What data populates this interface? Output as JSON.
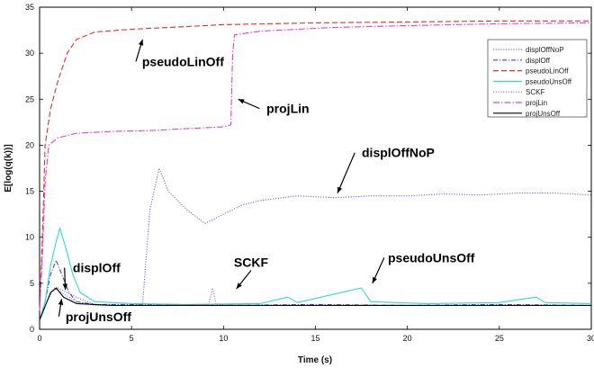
{
  "chart_data": {
    "type": "line",
    "xlabel": "Time (s)",
    "ylabel": "E[log(q(k))]",
    "xlim": [
      0,
      30
    ],
    "ylim": [
      0,
      35
    ],
    "x_ticks": [
      "0",
      "5",
      "10",
      "15",
      "20",
      "25",
      "30"
    ],
    "y_ticks": [
      "0",
      "5",
      "10",
      "15",
      "20",
      "25",
      "30",
      "35"
    ],
    "legend_position": "top-right",
    "series": [
      {
        "name": "displOffNoP",
        "color": "#6b6bd6",
        "dash": "1.2,1.6",
        "points": [
          [
            0,
            1
          ],
          [
            0.3,
            2.5
          ],
          [
            0.6,
            4
          ],
          [
            1,
            4.5
          ],
          [
            2,
            3.5
          ],
          [
            3,
            2.7
          ],
          [
            4,
            2.6
          ],
          [
            5,
            2.6
          ],
          [
            5.6,
            2.7
          ],
          [
            6,
            13
          ],
          [
            6.5,
            17.5
          ],
          [
            7,
            15
          ],
          [
            8,
            13
          ],
          [
            9,
            11.5
          ],
          [
            10,
            12.5
          ],
          [
            11,
            13.5
          ],
          [
            12,
            14
          ],
          [
            14,
            14.5
          ],
          [
            16,
            14.3
          ],
          [
            18,
            14.5
          ],
          [
            20,
            14.5
          ],
          [
            22,
            14.7
          ],
          [
            24,
            14.6
          ],
          [
            26,
            14.8
          ],
          [
            28,
            14.8
          ],
          [
            30,
            14.6
          ]
        ]
      },
      {
        "name": "displOff",
        "color": "#5b3fc4",
        "dash": "5,2,1,2",
        "points": [
          [
            0,
            1
          ],
          [
            0.3,
            3
          ],
          [
            0.6,
            6
          ],
          [
            0.9,
            7.5
          ],
          [
            1.2,
            6
          ],
          [
            1.6,
            4
          ],
          [
            2,
            3
          ],
          [
            3,
            2.7
          ],
          [
            5,
            2.7
          ],
          [
            10,
            2.6
          ],
          [
            15,
            2.7
          ],
          [
            20,
            2.6
          ],
          [
            25,
            2.7
          ],
          [
            30,
            2.6
          ]
        ]
      },
      {
        "name": "pseudoLinOff",
        "color": "#e03020",
        "dash": "6,3",
        "points": [
          [
            0,
            2
          ],
          [
            0.15,
            10
          ],
          [
            0.3,
            20
          ],
          [
            0.6,
            24
          ],
          [
            1,
            27
          ],
          [
            1.5,
            30
          ],
          [
            2,
            31.5
          ],
          [
            3,
            32.3
          ],
          [
            5,
            32.6
          ],
          [
            8,
            32.9
          ],
          [
            10,
            33.1
          ],
          [
            15,
            33.3
          ],
          [
            20,
            33.4
          ],
          [
            25,
            33.5
          ],
          [
            30,
            33.5
          ]
        ]
      },
      {
        "name": "pseudoUnsOff",
        "color": "#30d8d8",
        "dash": "",
        "points": [
          [
            0,
            1
          ],
          [
            0.3,
            3
          ],
          [
            0.6,
            7
          ],
          [
            0.9,
            9.5
          ],
          [
            1.1,
            11
          ],
          [
            1.4,
            9
          ],
          [
            1.8,
            6
          ],
          [
            2.2,
            4
          ],
          [
            3,
            3
          ],
          [
            5,
            2.8
          ],
          [
            8,
            2.7
          ],
          [
            12,
            2.8
          ],
          [
            13.5,
            3.5
          ],
          [
            14,
            2.9
          ],
          [
            17.5,
            4.5
          ],
          [
            18,
            3
          ],
          [
            21,
            2.8
          ],
          [
            25,
            2.9
          ],
          [
            27,
            3.5
          ],
          [
            27.5,
            2.9
          ],
          [
            30,
            2.8
          ]
        ]
      },
      {
        "name": "SCKF",
        "color": "#a070d0",
        "dash": "1.2,1.6",
        "points": [
          [
            0,
            1
          ],
          [
            0.4,
            3
          ],
          [
            0.8,
            4.5
          ],
          [
            1.2,
            4
          ],
          [
            2,
            3
          ],
          [
            3,
            2.6
          ],
          [
            6,
            2.6
          ],
          [
            9.2,
            2.7
          ],
          [
            9.4,
            4.5
          ],
          [
            9.6,
            2.7
          ],
          [
            12,
            2.6
          ],
          [
            16,
            2.6
          ],
          [
            20,
            2.6
          ],
          [
            24,
            2.6
          ],
          [
            30,
            2.6
          ]
        ]
      },
      {
        "name": "projLin",
        "color": "#e040e0",
        "dash": "7,2,1.5,2",
        "points": [
          [
            0,
            2
          ],
          [
            0.15,
            8
          ],
          [
            0.3,
            16
          ],
          [
            0.5,
            20
          ],
          [
            1,
            20.8
          ],
          [
            2,
            21.3
          ],
          [
            4,
            21.5
          ],
          [
            6,
            21.6
          ],
          [
            8,
            21.8
          ],
          [
            10,
            22
          ],
          [
            10.4,
            22.2
          ],
          [
            10.5,
            30
          ],
          [
            10.6,
            32
          ],
          [
            12,
            32.4
          ],
          [
            16,
            32.8
          ],
          [
            20,
            33
          ],
          [
            25,
            33.2
          ],
          [
            30,
            33.3
          ]
        ]
      },
      {
        "name": "projUnsOff",
        "color": "#000000",
        "dash": "",
        "points": [
          [
            0,
            1
          ],
          [
            0.3,
            2.5
          ],
          [
            0.6,
            4
          ],
          [
            0.9,
            4.5
          ],
          [
            1.3,
            3.5
          ],
          [
            2,
            2.8
          ],
          [
            4,
            2.6
          ],
          [
            8,
            2.6
          ],
          [
            12,
            2.6
          ],
          [
            16,
            2.6
          ],
          [
            20,
            2.6
          ],
          [
            24,
            2.6
          ],
          [
            30,
            2.6
          ]
        ]
      }
    ],
    "annotations": [
      {
        "text": "pseudoLinOff",
        "x": 7.8,
        "y": 28.6,
        "tip_x": 5.6,
        "tip_y": 31.5
      },
      {
        "text": "projLin",
        "x": 13.5,
        "y": 23.5,
        "tip_x": 10.8,
        "tip_y": 25
      },
      {
        "text": "displOffNoP",
        "x": 19.5,
        "y": 18.7,
        "tip_x": 16.2,
        "tip_y": 14.8
      },
      {
        "text": "displOff",
        "x": 3.1,
        "y": 6.2,
        "tip_x": 1.4,
        "tip_y": 4.3
      },
      {
        "text": "SCKF",
        "x": 11.5,
        "y": 6.8,
        "tip_x": 10.7,
        "tip_y": 4.4
      },
      {
        "text": "pseudoUnsOff",
        "x": 21.3,
        "y": 7.3,
        "tip_x": 18.1,
        "tip_y": 5
      },
      {
        "text": "projUnsOff",
        "x": 3.2,
        "y": 0.9,
        "tip_x": 1.2,
        "tip_y": 3.3
      }
    ],
    "grid": false
  }
}
